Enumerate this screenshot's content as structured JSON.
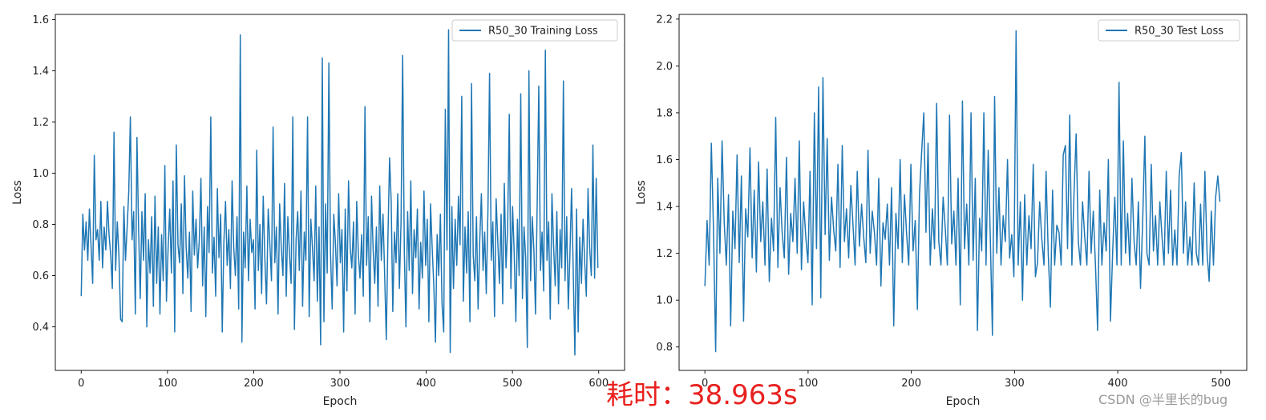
{
  "caption": "耗时：38.963s",
  "watermark": "CSDN @半里长的bug",
  "line_color": "#1f77b4",
  "chart_data": [
    {
      "type": "line",
      "title": "",
      "xlabel": "Epoch",
      "ylabel": "Loss",
      "xlim": [
        -30,
        630
      ],
      "ylim": [
        0.23,
        1.62
      ],
      "xticks": [
        0,
        100,
        200,
        300,
        400,
        500,
        600
      ],
      "yticks": [
        0.4,
        0.6,
        0.8,
        1.0,
        1.2,
        1.4,
        1.6
      ],
      "ytick_labels": [
        "0.4",
        "0.6",
        "0.8",
        "1.0",
        "1.2",
        "1.4",
        "1.6"
      ],
      "legend_position": "top-right",
      "series": [
        {
          "name": "R50_30 Training Loss",
          "x_start": 0,
          "x_end": 599,
          "values": [
            0.52,
            0.84,
            0.7,
            0.81,
            0.66,
            0.86,
            0.72,
            0.57,
            1.07,
            0.74,
            0.78,
            0.66,
            0.89,
            0.63,
            0.79,
            0.7,
            0.89,
            0.76,
            0.68,
            0.55,
            1.16,
            0.62,
            0.81,
            0.68,
            0.43,
            0.42,
            0.87,
            0.66,
            0.79,
            0.93,
            1.22,
            0.74,
            0.85,
            0.45,
            1.14,
            0.78,
            0.51,
            0.85,
            0.66,
            0.92,
            0.4,
            0.74,
            0.61,
            0.83,
            0.48,
            0.91,
            0.57,
            0.79,
            0.45,
            0.76,
            0.58,
            1.03,
            0.5,
            0.71,
            0.86,
            0.61,
            0.97,
            0.38,
            1.11,
            0.72,
            0.65,
            0.88,
            0.53,
            0.99,
            0.71,
            0.59,
            0.77,
            0.46,
            0.93,
            0.68,
            0.82,
            0.63,
            0.74,
            0.98,
            0.56,
            0.79,
            0.44,
            0.87,
            0.69,
            1.22,
            0.61,
            0.75,
            0.52,
            0.94,
            0.67,
            0.84,
            0.38,
            0.73,
            0.89,
            0.64,
            0.78,
            0.55,
            0.97,
            0.71,
            0.6,
            0.83,
            0.47,
            1.54,
            0.34,
            0.77,
            0.63,
            0.95,
            0.58,
            0.82,
            0.69,
            0.74,
            0.47,
            1.09,
            0.62,
            0.8,
            0.53,
            0.91,
            0.66,
            0.49,
            0.86,
            0.73,
            0.58,
            1.18,
            0.65,
            0.79,
            0.45,
            0.88,
            0.71,
            0.6,
            0.96,
            0.52,
            0.83,
            0.68,
            0.57,
            1.22,
            0.39,
            0.74,
            0.85,
            0.62,
            0.93,
            0.48,
            0.77,
            0.66,
            1.22,
            0.44,
            0.82,
            0.71,
            0.58,
            0.95,
            0.5,
            0.79,
            0.33,
            1.45,
            0.42,
            0.88,
            0.61,
            1.43,
            0.69,
            0.47,
            0.84,
            0.73,
            0.56,
            0.92,
            0.65,
            0.78,
            0.38,
            0.86,
            0.54,
            0.97,
            0.71,
            0.63,
            0.81,
            0.45,
            0.89,
            0.68,
            0.59,
            0.76,
            0.52,
            1.26,
            0.64,
            0.83,
            0.42,
            0.91,
            0.7,
            0.57,
            0.79,
            0.48,
            0.95,
            0.66,
            0.84,
            0.61,
            0.35,
            0.74,
            1.06,
            0.89,
            0.46,
            0.77,
            0.65,
            0.92,
            0.55,
            0.81,
            1.46,
            0.69,
            0.4,
            0.85,
            0.62,
            0.97,
            0.53,
            0.78,
            0.67,
            0.86,
            0.47,
            0.73,
            0.59,
            0.93,
            0.64,
            0.82,
            0.42,
            0.88,
            0.71,
            0.56,
            0.34,
            0.76,
            0.6,
            0.84,
            0.49,
            0.38,
            1.25,
            0.7,
            1.56,
            0.3,
            0.87,
            0.55,
            0.82,
            0.64,
            0.91,
            0.72,
            1.3,
            0.5,
            0.79,
            0.61,
            0.85,
            0.42,
            1.35,
            0.68,
            0.58,
            0.83,
            0.47,
            0.74,
            0.92,
            0.62,
            0.77,
            0.53,
            0.86,
            1.39,
            0.66,
            0.81,
            0.44,
            0.9,
            0.73,
            0.57,
            0.84,
            0.49,
            0.96,
            0.63,
            0.78,
            1.23,
            0.55,
            0.87,
            0.69,
            0.42,
            0.82,
            0.6,
            1.31,
            0.51,
            0.79,
            0.67,
            0.32,
            1.4,
            0.58,
            0.83,
            0.7,
            0.45,
            0.88,
            1.34,
            0.62,
            0.77,
            0.54,
            1.48,
            0.66,
            0.81,
            0.43,
            0.92,
            0.72,
            0.56,
            0.85,
            0.49,
            0.78,
            0.63,
            1.36,
            0.58,
            0.83,
            0.47,
            0.69,
            0.94,
            0.61,
            0.29,
            0.86,
            0.38,
            0.75,
            0.57,
            0.82,
            0.65,
            0.52,
            0.94,
            0.71,
            0.6,
            1.11,
            0.59,
            0.98,
            0.63
          ]
        }
      ]
    },
    {
      "type": "line",
      "title": "",
      "xlabel": "Epoch",
      "ylabel": "Loss",
      "xlim": [
        -25,
        525
      ],
      "ylim": [
        0.7,
        2.22
      ],
      "xticks": [
        0,
        100,
        200,
        300,
        400,
        500
      ],
      "yticks": [
        0.8,
        1.0,
        1.2,
        1.4,
        1.6,
        1.8,
        2.0,
        2.2
      ],
      "ytick_labels": [
        "0.8",
        "1.0",
        "1.2",
        "1.4",
        "1.6",
        "1.8",
        "2.0",
        "2.2"
      ],
      "legend_position": "top-right",
      "series": [
        {
          "name": "R50_30 Test Loss",
          "x_start": 0,
          "x_end": 499,
          "values": [
            1.06,
            1.34,
            1.15,
            1.67,
            1.3,
            0.78,
            1.52,
            1.2,
            1.68,
            1.33,
            1.15,
            1.45,
            0.89,
            1.38,
            1.22,
            1.62,
            1.16,
            1.53,
            0.91,
            1.39,
            1.27,
            1.65,
            1.18,
            1.47,
            1.12,
            1.59,
            1.25,
            1.42,
            1.15,
            1.56,
            1.08,
            1.35,
            1.21,
            1.78,
            1.14,
            1.48,
            1.29,
            1.18,
            1.61,
            1.11,
            1.37,
            1.25,
            1.52,
            1.2,
            1.68,
            1.13,
            1.42,
            1.27,
            1.16,
            1.55,
            0.98,
            1.8,
            1.22,
            1.91,
            1.01,
            1.95,
            1.28,
            1.69,
            1.17,
            1.44,
            1.3,
            1.21,
            1.58,
            1.14,
            1.66,
            1.25,
            1.39,
            1.18,
            1.49,
            1.32,
            1.15,
            1.55,
            1.23,
            1.41,
            1.27,
            1.16,
            1.64,
            1.2,
            1.38,
            1.29,
            1.15,
            1.52,
            1.06,
            1.33,
            1.26,
            1.41,
            1.15,
            1.48,
            0.89,
            1.37,
            1.22,
            1.6,
            1.16,
            1.45,
            1.28,
            1.15,
            1.58,
            1.21,
            1.34,
            0.96,
            1.45,
            1.63,
            1.8,
            1.29,
            1.67,
            1.15,
            1.39,
            1.22,
            1.84,
            1.25,
            1.15,
            1.44,
            1.31,
            1.15,
            1.79,
            1.24,
            1.38,
            1.15,
            1.52,
            0.98,
            1.85,
            1.22,
            1.41,
            1.15,
            1.8,
            1.17,
            1.52,
            0.87,
            1.35,
            1.21,
            1.8,
            1.15,
            1.64,
            1.26,
            0.85,
            1.87,
            1.2,
            1.48,
            1.15,
            1.36,
            1.25,
            1.6,
            1.18,
            1.28,
            1.1,
            2.15,
            1.15,
            1.42,
            1.0,
            1.45,
            1.15,
            1.36,
            1.22,
            1.58,
            1.1,
            1.16,
            1.42,
            1.26,
            1.15,
            1.55,
            1.2,
            0.97,
            1.47,
            1.15,
            1.32,
            1.29,
            1.15,
            1.62,
            1.66,
            1.22,
            1.79,
            1.15,
            1.45,
            1.71,
            1.25,
            1.15,
            1.42,
            1.27,
            1.15,
            1.55,
            1.2,
            1.38,
            1.15,
            0.87,
            1.47,
            1.15,
            1.33,
            1.21,
            1.6,
            0.91,
            1.2,
            1.44,
            1.15,
            1.93,
            1.15,
            1.68,
            1.2,
            1.37,
            1.15,
            1.52,
            1.25,
            1.15,
            1.42,
            1.05,
            1.34,
            1.7,
            1.2,
            1.15,
            1.58,
            1.21,
            1.36,
            1.15,
            1.42,
            1.27,
            1.15,
            1.55,
            1.2,
            1.47,
            1.15,
            1.3,
            1.15,
            1.53,
            1.63,
            1.2,
            1.42,
            1.15,
            1.27,
            1.15,
            1.5,
            1.2,
            1.15,
            1.41,
            1.15,
            1.55,
            1.2,
            1.08,
            1.38,
            1.15,
            1.44,
            1.53,
            1.42
          ]
        }
      ]
    }
  ]
}
